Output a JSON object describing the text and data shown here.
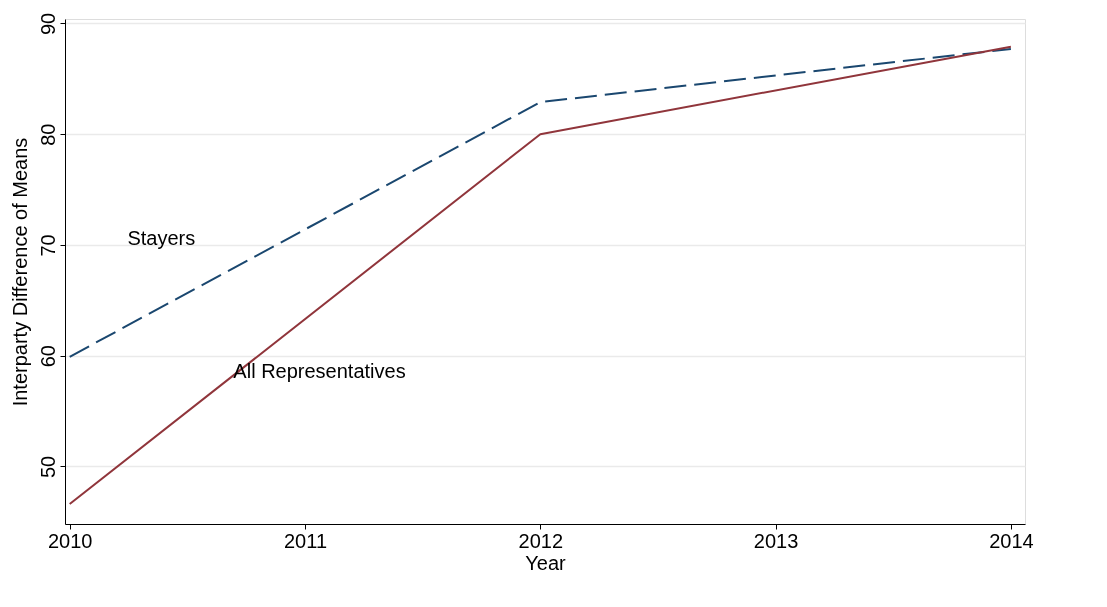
{
  "chart_data": {
    "type": "line",
    "xlabel": "Year",
    "ylabel": "Interparty Difference of Means",
    "x": [
      2010,
      2012,
      2014
    ],
    "series": [
      {
        "name": "Stayers",
        "color": "#1a476f",
        "line_style": "dashed",
        "values": [
          59.9,
          82.9,
          87.7
        ]
      },
      {
        "name": "All Representatives",
        "color": "#90353b",
        "line_style": "solid",
        "values": [
          46.6,
          80.0,
          87.9
        ]
      }
    ],
    "xlim": [
      2009.98,
      2014.06
    ],
    "xticks": [
      2010,
      2011,
      2012,
      2013,
      2014
    ],
    "ylim": [
      44.8,
      90.4
    ],
    "yticks": [
      50,
      60,
      70,
      80,
      90
    ],
    "grid": "y",
    "legend": false
  }
}
